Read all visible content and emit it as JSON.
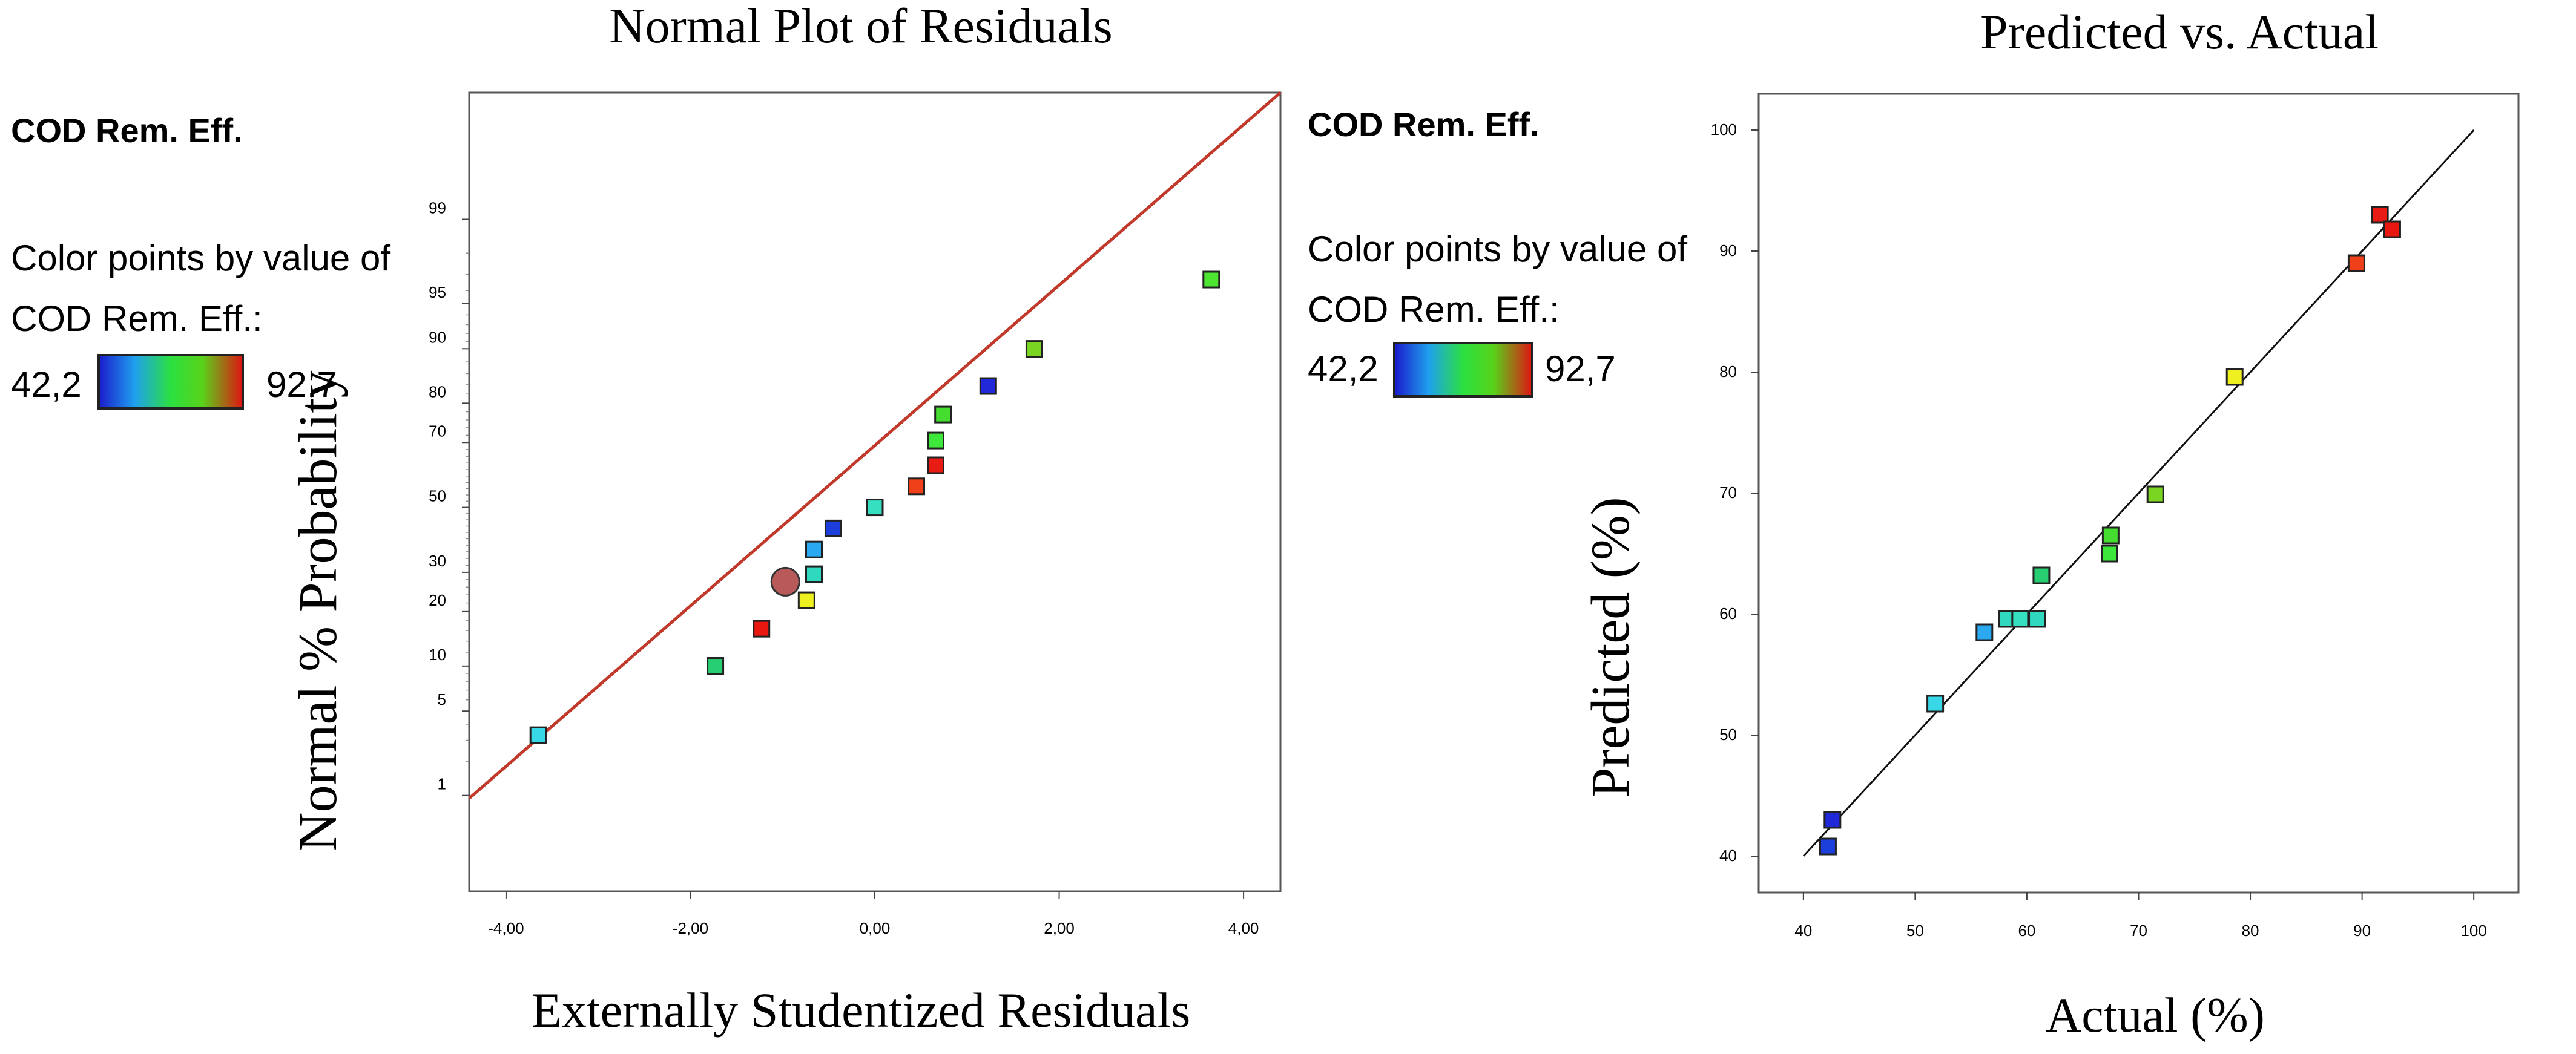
{
  "chart_data": [
    {
      "type": "scatter",
      "title": "Normal Plot of Residuals",
      "xlabel": "Externally Studentized Residuals",
      "ylabel": "Normal % Probability",
      "legend": {
        "response": "COD Rem. Eff.",
        "color_caption": "Color points by value of",
        "color_caption2": "COD Rem. Eff.:",
        "min_label": "42,2",
        "max_label": "92.7"
      },
      "xlim": [
        -4.4,
        4.4
      ],
      "x_ticks": [
        "-4,00",
        "-2,00",
        "0,00",
        "2,00",
        "4,00"
      ],
      "x_tick_values": [
        -4,
        -2,
        0,
        2,
        4
      ],
      "y_ticks": [
        "1",
        "5",
        "10",
        "20",
        "30",
        "50",
        "70",
        "80",
        "90",
        "95",
        "99"
      ],
      "y_tick_values": [
        1,
        5,
        10,
        20,
        30,
        50,
        70,
        80,
        90,
        95,
        99
      ],
      "ylim_z": [
        -3.1,
        3.35
      ],
      "line": [
        {
          "x": -4.4,
          "z": -2.35
        },
        {
          "x": 4.4,
          "z": 3.35
        }
      ],
      "points": [
        {
          "x": -3.65,
          "z": -1.84,
          "color": "#38d8e8"
        },
        {
          "x": -1.73,
          "z": -1.28,
          "color": "#27cf72"
        },
        {
          "x": -1.23,
          "z": -0.98,
          "color": "#e8170f"
        },
        {
          "x": -0.74,
          "z": -0.75,
          "color": "#eef020"
        },
        {
          "x": -0.66,
          "z": -0.54,
          "color": "#2ed9c0"
        },
        {
          "x": -0.66,
          "z": -0.34,
          "color": "#2aa8f0"
        },
        {
          "x": -0.45,
          "z": -0.17,
          "color": "#1c3fdc"
        },
        {
          "x": 0.0,
          "z": 0.0,
          "color": "#35e0c0"
        },
        {
          "x": 0.45,
          "z": 0.17,
          "color": "#f0401a"
        },
        {
          "x": 0.66,
          "z": 0.34,
          "color": "#e81c14"
        },
        {
          "x": 0.66,
          "z": 0.54,
          "color": "#3ee83a"
        },
        {
          "x": 0.74,
          "z": 0.75,
          "color": "#44dd30"
        },
        {
          "x": 1.23,
          "z": 0.98,
          "color": "#2028d8"
        },
        {
          "x": 1.73,
          "z": 1.28,
          "color": "#7ad422"
        },
        {
          "x": 3.65,
          "z": 1.84,
          "color": "#4ee432"
        }
      ],
      "highlight": {
        "x": -0.97,
        "z": -0.6,
        "color": "#b85a5a"
      }
    },
    {
      "type": "scatter",
      "title": "Predicted vs. Actual",
      "xlabel": "Actual (%)",
      "ylabel": "Predicted (%)",
      "legend": {
        "response": "COD Rem. Eff.",
        "color_caption": "Color points by value of",
        "color_caption2": "COD Rem. Eff.:",
        "min_label": "42,2",
        "max_label": "92,7"
      },
      "xlim": [
        36,
        104
      ],
      "ylim": [
        37,
        103
      ],
      "x_ticks": [
        "40",
        "50",
        "60",
        "70",
        "80",
        "90",
        "100"
      ],
      "y_ticks": [
        "40",
        "50",
        "60",
        "70",
        "80",
        "90",
        "100"
      ],
      "tick_values": [
        40,
        50,
        60,
        70,
        80,
        90,
        100
      ],
      "line": [
        {
          "x": 40,
          "y": 40
        },
        {
          "x": 100,
          "y": 100
        }
      ],
      "points": [
        {
          "x": 42.2,
          "y": 40.8,
          "color": "#1c3fdc"
        },
        {
          "x": 42.6,
          "y": 43.0,
          "color": "#2028d8"
        },
        {
          "x": 51.8,
          "y": 52.6,
          "color": "#38d8e8"
        },
        {
          "x": 56.2,
          "y": 58.5,
          "color": "#2aa8f0"
        },
        {
          "x": 58.2,
          "y": 59.6,
          "color": "#2ed9c0"
        },
        {
          "x": 59.4,
          "y": 59.6,
          "color": "#35e0c0"
        },
        {
          "x": 60.9,
          "y": 59.6,
          "color": "#2ed9c0"
        },
        {
          "x": 61.3,
          "y": 63.2,
          "color": "#27cf72"
        },
        {
          "x": 67.4,
          "y": 65.0,
          "color": "#3ee83a"
        },
        {
          "x": 67.5,
          "y": 66.5,
          "color": "#44dd30"
        },
        {
          "x": 71.5,
          "y": 69.9,
          "color": "#7ad422"
        },
        {
          "x": 78.6,
          "y": 79.6,
          "color": "#eef020"
        },
        {
          "x": 89.5,
          "y": 89.0,
          "color": "#f0401a"
        },
        {
          "x": 91.6,
          "y": 93.0,
          "color": "#e81c14"
        },
        {
          "x": 92.7,
          "y": 91.8,
          "color": "#e8170f"
        }
      ]
    }
  ]
}
